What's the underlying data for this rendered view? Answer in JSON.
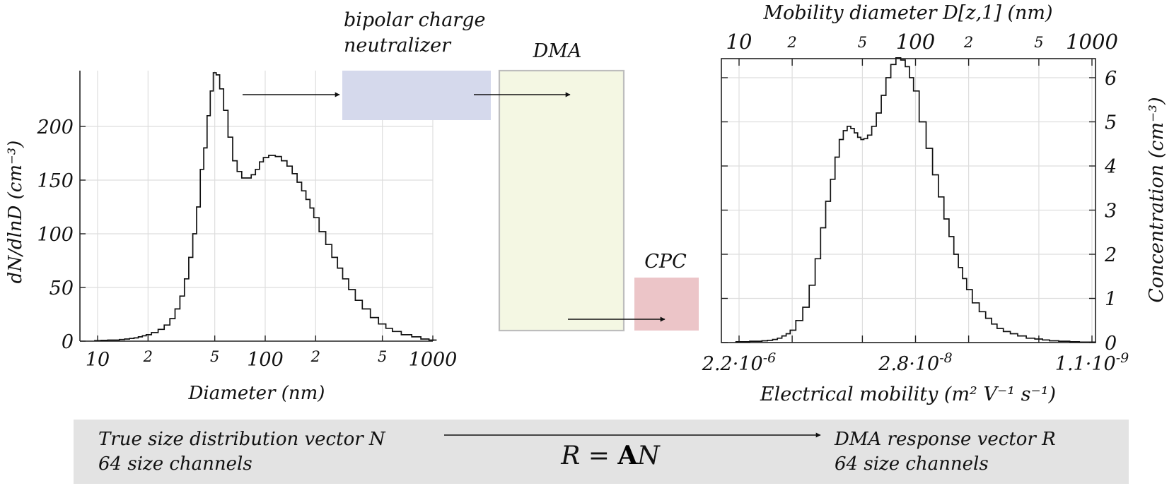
{
  "diagram": {
    "neutralizer_label_1": "bipolar charge",
    "neutralizer_label_2": "neutralizer",
    "dma_label": "DMA",
    "cpc_label": "CPC",
    "colors": {
      "neutralizer": "#d5d9ec",
      "dma_fill": "#f4f7e3",
      "dma_border": "#bdbdbd",
      "cpc": "#ecc5c8",
      "equation_box": "#e3e3e3"
    }
  },
  "equation_box": {
    "left_line1": "True size distribution vector N",
    "left_line2": "64 size channels",
    "right_line1": "DMA response vector R",
    "right_line2": "64 size channels",
    "equation_left": "R = ",
    "equation_matrix": "A",
    "equation_right": "N"
  },
  "chart_data": [
    {
      "type": "line",
      "step": true,
      "xscale": "log",
      "xlabel": "Diameter (nm)",
      "ylabel": "dN/dlnD (cm⁻³)",
      "xlim": [
        8,
        1000
      ],
      "ylim": [
        0,
        250
      ],
      "x_ticks": [
        {
          "v": 10,
          "label": "10",
          "major": true
        },
        {
          "v": 20,
          "label": "2",
          "major": false
        },
        {
          "v": 50,
          "label": "5",
          "major": false
        },
        {
          "v": 100,
          "label": "100",
          "major": true
        },
        {
          "v": 200,
          "label": "2",
          "major": false
        },
        {
          "v": 500,
          "label": "5",
          "major": false
        },
        {
          "v": 1000,
          "label": "1000",
          "major": true
        }
      ],
      "y_ticks": [
        0,
        50,
        100,
        150,
        200
      ],
      "x": [
        10,
        11,
        12,
        13,
        14,
        15,
        16,
        17,
        18,
        19,
        20,
        22,
        24,
        26,
        28,
        30,
        32,
        34,
        36,
        38,
        40,
        42,
        44,
        46,
        48,
        50,
        52,
        55,
        58,
        62,
        66,
        70,
        75,
        80,
        85,
        90,
        95,
        100,
        110,
        120,
        130,
        140,
        150,
        160,
        170,
        180,
        190,
        200,
        220,
        240,
        260,
        280,
        300,
        330,
        360,
        400,
        450,
        500,
        550,
        600,
        700,
        800,
        900,
        1000
      ],
      "values": [
        0.5,
        0.7,
        1,
        1,
        1.5,
        2,
        2.5,
        3,
        4,
        5,
        6,
        8,
        11,
        15,
        21,
        30,
        42,
        58,
        78,
        100,
        125,
        160,
        180,
        210,
        233,
        250,
        248,
        235,
        215,
        190,
        168,
        158,
        152,
        152,
        155,
        160,
        167,
        171,
        173,
        172,
        168,
        163,
        156,
        148,
        140,
        132,
        124,
        115,
        102,
        90,
        78,
        68,
        58,
        48,
        38,
        30,
        22,
        16,
        12,
        9,
        6,
        4,
        2,
        1
      ]
    },
    {
      "type": "line",
      "step": true,
      "xscale": "log",
      "xlabel": "Electrical mobility (m² V⁻¹ s⁻¹)",
      "ylabel": "Concentration (cm⁻³)",
      "top_axis_label": "Mobility diameter D[z,1] (nm)",
      "xlim": [
        8,
        1000
      ],
      "ylim": [
        0,
        6.4
      ],
      "bottom_ticks": [
        {
          "v": 10,
          "label": "2.2·10",
          "exp": "-6"
        },
        {
          "v": 100,
          "label": "2.8·10",
          "exp": "-8"
        },
        {
          "v": 1000,
          "label": "1.1·10",
          "exp": "-9"
        }
      ],
      "top_ticks": [
        {
          "v": 10,
          "label": "10",
          "major": true
        },
        {
          "v": 20,
          "label": "2",
          "major": false
        },
        {
          "v": 50,
          "label": "5",
          "major": false
        },
        {
          "v": 100,
          "label": "100",
          "major": true
        },
        {
          "v": 200,
          "label": "2",
          "major": false
        },
        {
          "v": 500,
          "label": "5",
          "major": false
        },
        {
          "v": 1000,
          "label": "1000",
          "major": true
        }
      ],
      "y_ticks": [
        0,
        1,
        2,
        3,
        4,
        5,
        6
      ],
      "x": [
        10,
        11,
        12,
        13,
        14,
        15,
        16,
        17,
        18,
        19,
        20,
        22,
        24,
        26,
        28,
        30,
        32,
        34,
        36,
        38,
        40,
        42,
        44,
        46,
        48,
        50,
        52,
        55,
        58,
        62,
        66,
        70,
        75,
        80,
        85,
        90,
        95,
        100,
        110,
        120,
        130,
        140,
        150,
        160,
        170,
        180,
        190,
        200,
        220,
        240,
        260,
        280,
        300,
        330,
        360,
        400,
        450,
        500,
        550,
        600,
        700,
        800,
        900,
        1000
      ],
      "values": [
        0.02,
        0.02,
        0.03,
        0.03,
        0.04,
        0.05,
        0.07,
        0.1,
        0.15,
        0.2,
        0.28,
        0.5,
        0.8,
        1.3,
        1.9,
        2.6,
        3.2,
        3.7,
        4.2,
        4.6,
        4.8,
        4.9,
        4.85,
        4.75,
        4.65,
        4.6,
        4.62,
        4.7,
        4.9,
        5.2,
        5.6,
        6.0,
        6.3,
        6.45,
        6.4,
        6.25,
        6.0,
        5.7,
        5.0,
        4.4,
        3.8,
        3.3,
        2.8,
        2.4,
        2.0,
        1.7,
        1.45,
        1.2,
        0.9,
        0.7,
        0.55,
        0.42,
        0.32,
        0.25,
        0.2,
        0.15,
        0.1,
        0.08,
        0.06,
        0.04,
        0.03,
        0.02,
        0.01,
        0.01
      ]
    }
  ]
}
